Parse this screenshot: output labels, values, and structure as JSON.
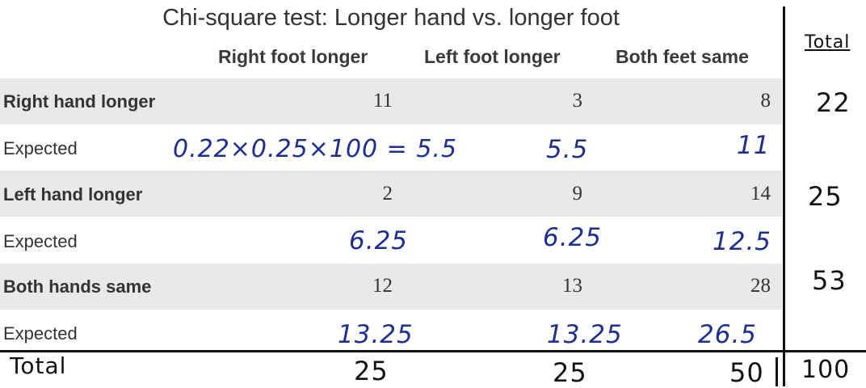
{
  "table": {
    "title": "Chi-square test: Longer hand vs. longer foot",
    "columns": [
      "Right foot longer",
      "Left foot longer",
      "Both feet same"
    ],
    "rows": [
      {
        "label": "Right hand longer",
        "values": [
          "11",
          "3",
          "8"
        ]
      },
      {
        "label": "Expected",
        "values": [
          "0.22×0.25×100 = 5.5",
          "5.5",
          "11"
        ]
      },
      {
        "label": "Left hand longer",
        "values": [
          "2",
          "9",
          "14"
        ]
      },
      {
        "label": "Expected",
        "values": [
          "6.25",
          "6.25",
          "12.5"
        ]
      },
      {
        "label": "Both hands same",
        "values": [
          "12",
          "13",
          "28"
        ]
      },
      {
        "label": "Expected",
        "values": [
          "13.25",
          "13.25",
          "26.5"
        ]
      }
    ]
  },
  "annotations": {
    "total_header": "Total",
    "row_totals": [
      "22",
      "25",
      "53"
    ],
    "total_row_label": "Total",
    "column_totals": [
      "25",
      "25",
      "50"
    ],
    "grand_total": "100"
  },
  "colors": {
    "band": "#e9e9e9",
    "handwriting_blue": "#1f2f8f",
    "handwriting_black": "#111111"
  }
}
